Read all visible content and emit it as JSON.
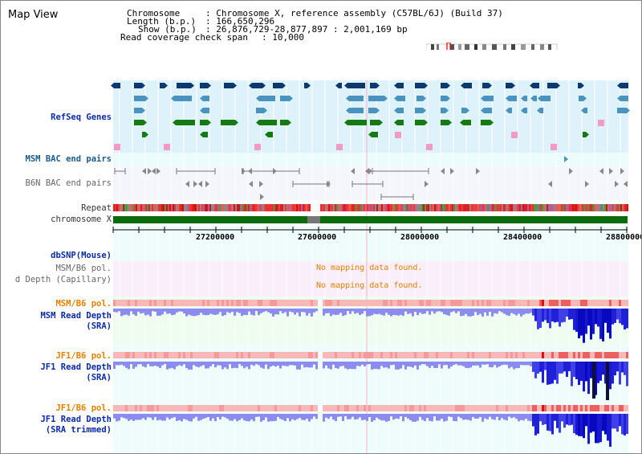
{
  "header": {
    "title": "Map View",
    "chromosome_label": "Chromosome",
    "chromosome_value": ": Chromosome X, reference assembly (C57BL/6J) (Build 37)",
    "length_label": "Length (b.p.)",
    "length_value": ": 166,650,296",
    "show_label": "Show (b.p.)",
    "show_value": ": 26,876,729-28,877,897 : 2,001,169 bp",
    "coverage_label": "Read coverage check span",
    "coverage_value": ": 10,000"
  },
  "tracks": {
    "refseq": "RefSeq Genes",
    "msm_bac": "MSM BAC end pairs",
    "b6n_bac": "B6N BAC end pairs",
    "repeat": "Repeat",
    "chromosome": "chromosome X",
    "dbsnp": "dbSNP(Mouse)",
    "msm_pol_1": "MSM/B6 pol.",
    "read_depth_cap": "d Depth (Capillary)",
    "msm_pol_2": "MSM/B6 pol.",
    "msm_rd_1": "MSM Read Depth",
    "msm_rd_2": "(SRA)",
    "jf1_pol_1": "JF1/B6 pol.",
    "jf1_rd_1": "JF1 Read Depth",
    "jf1_rd_2": "(SRA)",
    "jf1_pol_2": "JF1/B6 pol.",
    "jf1t_rd_1": "JF1 Read Depth",
    "jf1t_rd_2": "(SRA trimmed)"
  },
  "messages": {
    "no_data_1": "No mapping data found.",
    "no_data_2": "No mapping data found."
  },
  "axis": {
    "ticks": [
      "27200000",
      "27600000",
      "28000000",
      "28400000",
      "28800000"
    ]
  },
  "colors": {
    "refseq_bg": "#def2fb",
    "bac_bg": "#eefcfb",
    "pink_bg": "#f9eefa",
    "green_bg": "#eefdf0",
    "gene_navy": "#0c3a6e",
    "gene_blue": "#4b93bf",
    "gene_green": "#157a12",
    "gene_pink": "#f39ac7",
    "depth_blue": "#5353ee",
    "chrom_green": "#0c6b0c"
  }
}
